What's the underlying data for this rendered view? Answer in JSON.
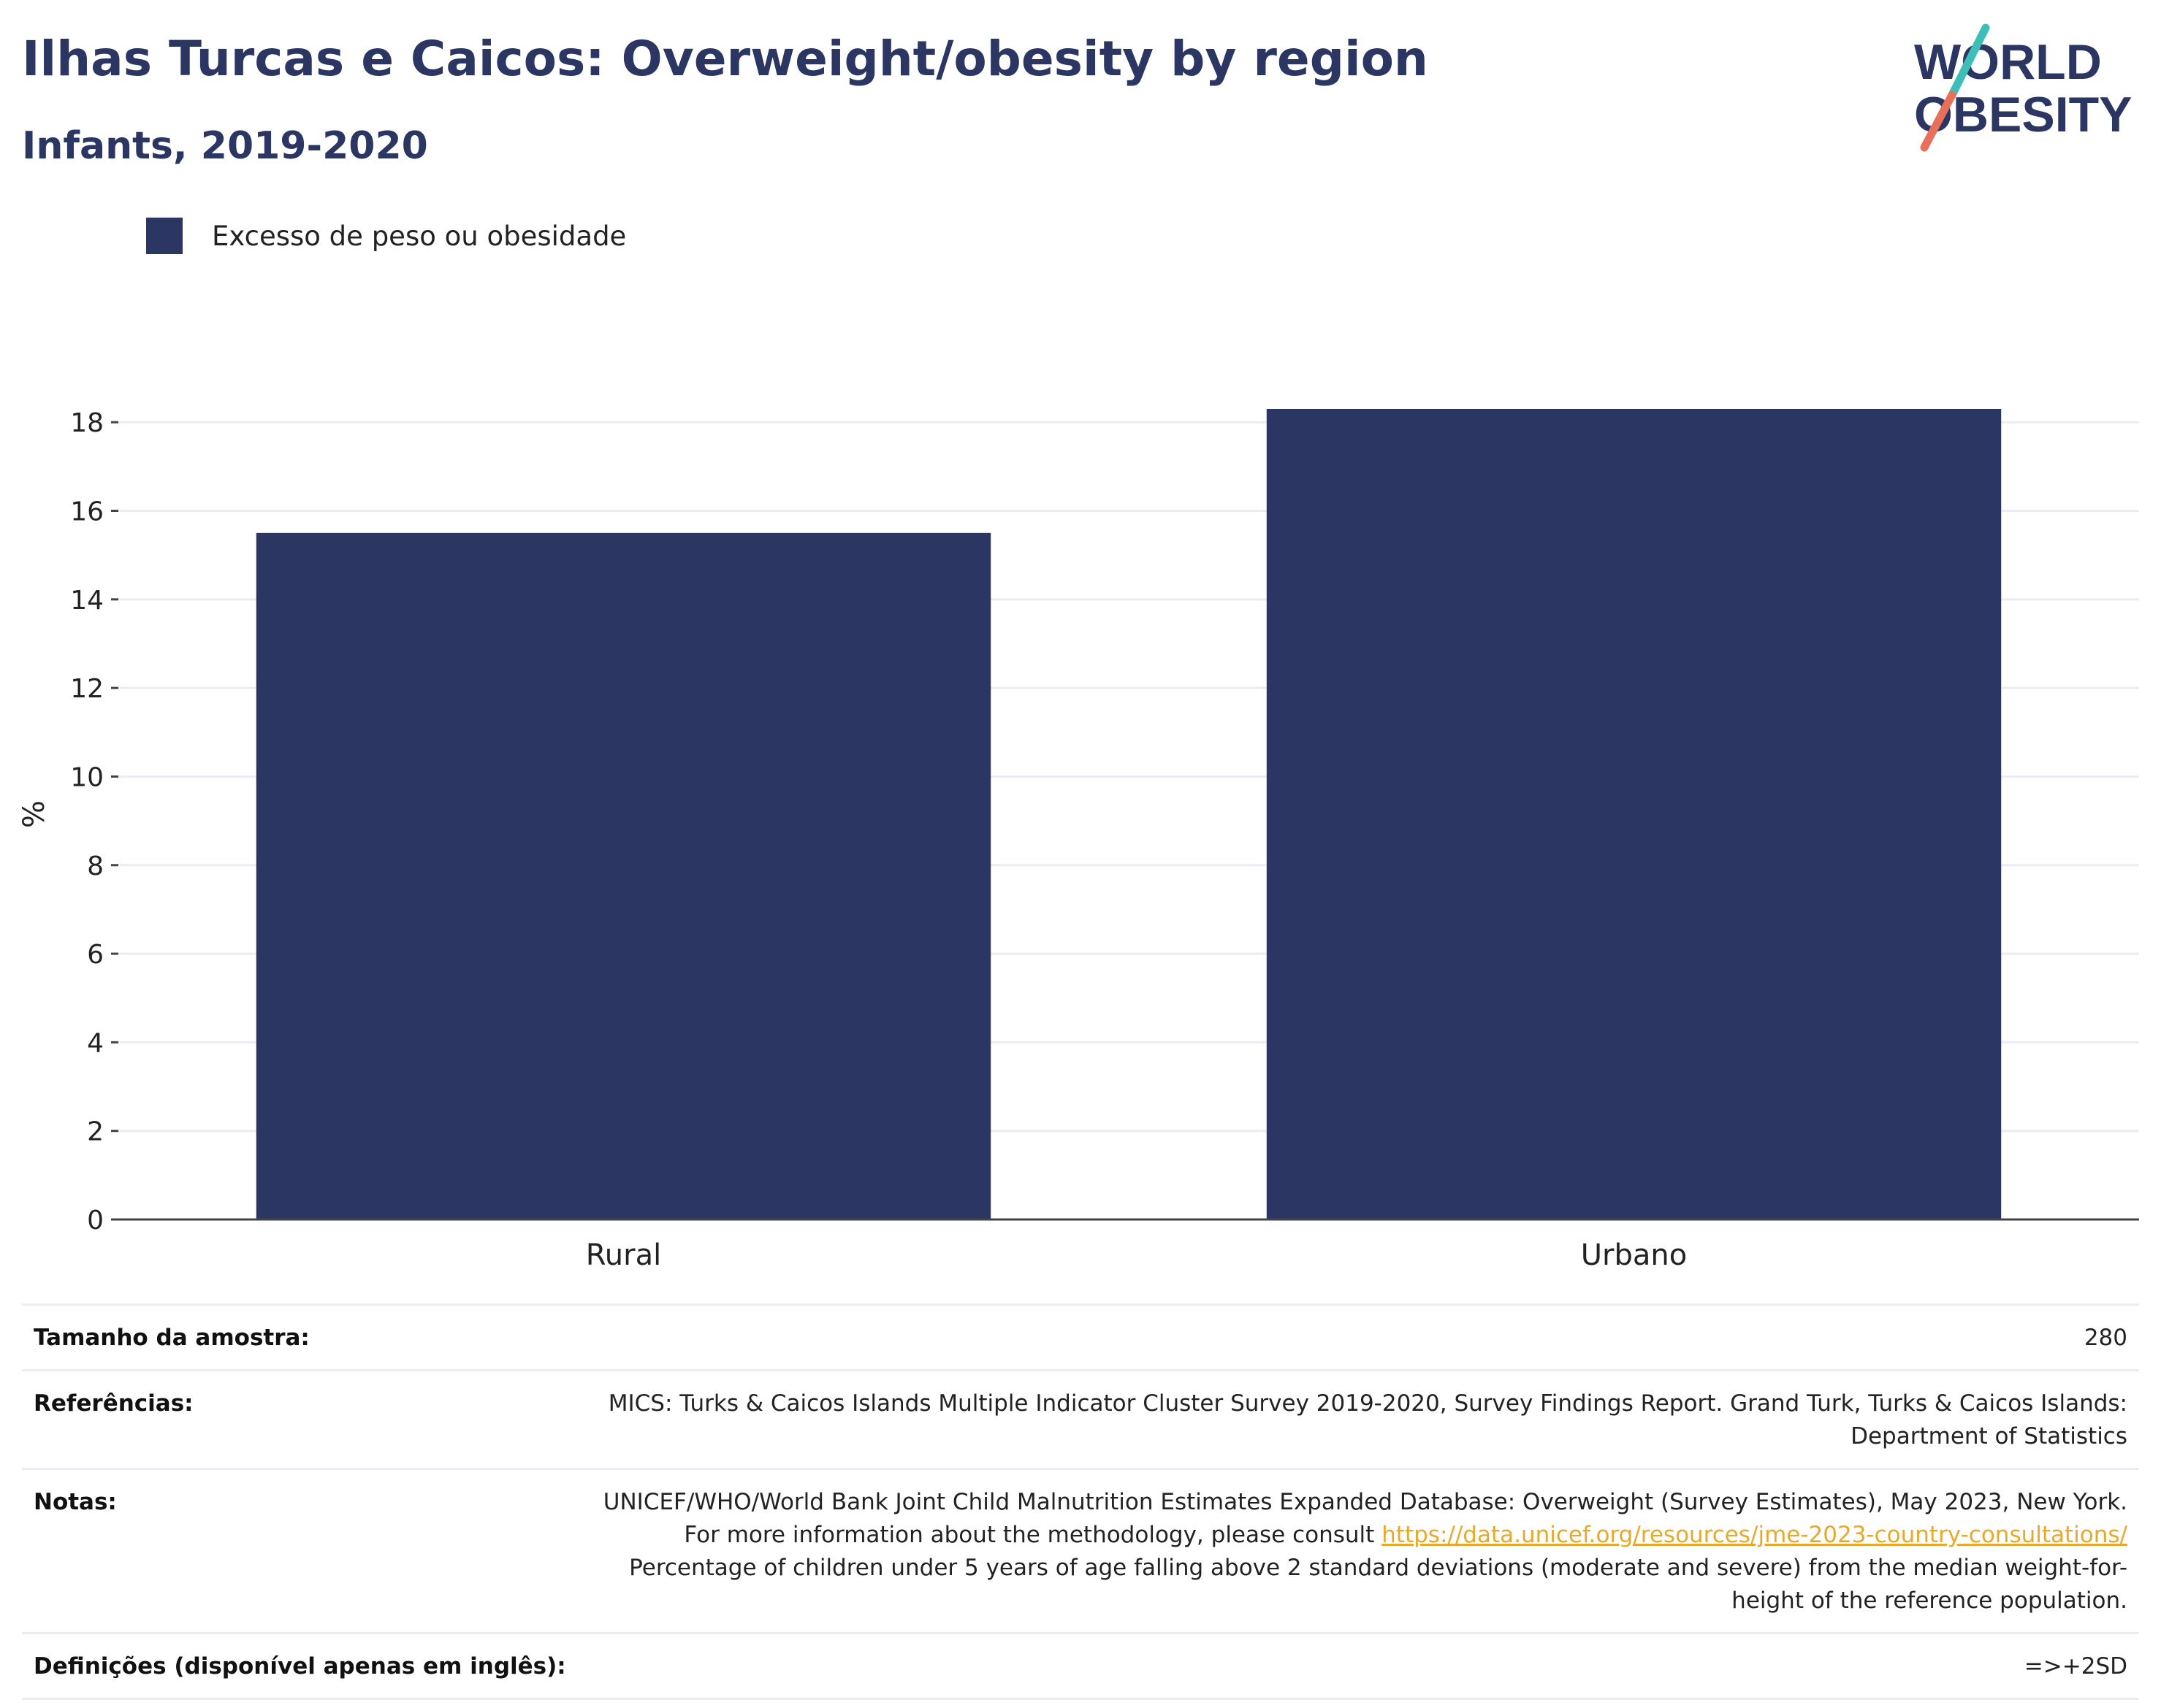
{
  "header": {
    "title": "Ilhas Turcas e Caicos: Overweight/obesity by region",
    "subtitle": "Infants, 2019-2020"
  },
  "logo": {
    "line1": "WORLD",
    "line2": "OBESITY",
    "colors": {
      "text": "#2b3762",
      "slash_top": "#3cbfb6",
      "slash_bottom": "#e8705a"
    }
  },
  "legend": {
    "label": "Excesso de peso ou obesidade",
    "color": "#2b3762",
    "placement": "top-left"
  },
  "chart_data": {
    "type": "bar",
    "categories": [
      "Rural",
      "Urbano"
    ],
    "series": [
      {
        "name": "Excesso de peso ou obesidade",
        "values": [
          15.5,
          18.3
        ],
        "color": "#2b3762"
      }
    ],
    "xlabel": "",
    "ylabel": "%",
    "ylim": [
      0,
      18.3
    ],
    "yticks": [
      0,
      2,
      4,
      6,
      8,
      10,
      12,
      14,
      16,
      18
    ],
    "grid": true
  },
  "info": {
    "sample_size": {
      "label": "Tamanho da amostra:",
      "value": "280"
    },
    "references": {
      "label": "Referências:",
      "value": "MICS: Turks & Caicos Islands Multiple Indicator Cluster Survey 2019-2020, Survey Findings Report. Grand Turk, Turks & Caicos Islands: Department of Statistics"
    },
    "notes": {
      "label": "Notas:",
      "text_before": "UNICEF/WHO/World Bank Joint Child Malnutrition Estimates Expanded Database: Overweight (Survey Estimates), May 2023, New York. For more information about the methodology, please consult ",
      "link": "https://data.unicef.org/resources/jme-2023-country-consultations/",
      "text_after": " Percentage of children under 5 years of age falling above 2 standard deviations (moderate and severe) from the median weight-for-height of the reference population."
    },
    "definitions": {
      "label": "Definições (disponível apenas em inglês):",
      "value": "=>+2SD"
    }
  }
}
